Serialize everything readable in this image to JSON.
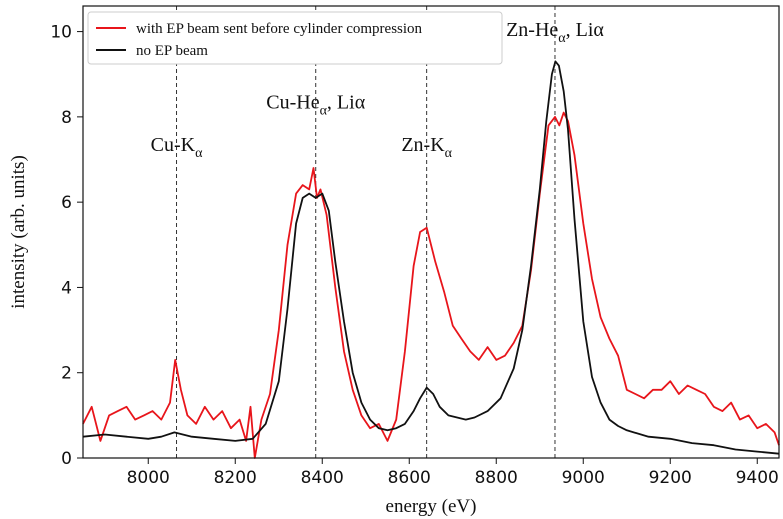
{
  "chart_data": {
    "type": "line",
    "xlabel": "energy (eV)",
    "ylabel": "intensity (arb. units)",
    "xlim": [
      7850,
      9450
    ],
    "ylim": [
      0,
      10.6
    ],
    "xticks": [
      8000,
      8200,
      8400,
      8600,
      8800,
      9000,
      9200,
      9400
    ],
    "yticks": [
      0,
      2,
      4,
      6,
      8,
      10
    ],
    "grid": false,
    "legend_position": "top-left",
    "colors": {
      "with_ep": "#e8151b",
      "no_ep": "#111111"
    },
    "series": [
      {
        "name": "with EP beam sent before cylinder compression",
        "color": "#e8151b",
        "x": [
          7850,
          7870,
          7890,
          7910,
          7930,
          7950,
          7970,
          7990,
          8010,
          8030,
          8050,
          8062,
          8075,
          8090,
          8110,
          8130,
          8150,
          8170,
          8190,
          8210,
          8225,
          8235,
          8245,
          8260,
          8280,
          8300,
          8320,
          8340,
          8355,
          8370,
          8380,
          8388,
          8396,
          8410,
          8430,
          8450,
          8470,
          8490,
          8510,
          8530,
          8550,
          8570,
          8590,
          8610,
          8625,
          8640,
          8660,
          8680,
          8700,
          8720,
          8740,
          8760,
          8780,
          8800,
          8820,
          8840,
          8860,
          8880,
          8900,
          8920,
          8935,
          8945,
          8955,
          8965,
          8980,
          9000,
          9020,
          9040,
          9060,
          9080,
          9100,
          9120,
          9140,
          9160,
          9180,
          9200,
          9220,
          9240,
          9260,
          9280,
          9300,
          9320,
          9340,
          9360,
          9380,
          9400,
          9420,
          9440,
          9450
        ],
        "values": [
          0.8,
          1.2,
          0.4,
          1.0,
          1.1,
          1.2,
          0.9,
          1.0,
          1.1,
          0.9,
          1.3,
          2.3,
          1.6,
          1.0,
          0.8,
          1.2,
          0.9,
          1.1,
          0.7,
          0.9,
          0.4,
          1.2,
          0.0,
          0.9,
          1.5,
          3.0,
          5.0,
          6.2,
          6.4,
          6.3,
          6.8,
          6.1,
          6.3,
          5.7,
          4.0,
          2.5,
          1.6,
          1.0,
          0.7,
          0.8,
          0.4,
          0.9,
          2.5,
          4.5,
          5.3,
          5.4,
          4.6,
          3.9,
          3.1,
          2.8,
          2.5,
          2.3,
          2.6,
          2.3,
          2.4,
          2.7,
          3.1,
          4.4,
          6.2,
          7.8,
          8.0,
          7.8,
          8.1,
          7.9,
          7.1,
          5.5,
          4.2,
          3.3,
          2.8,
          2.4,
          1.6,
          1.5,
          1.4,
          1.6,
          1.6,
          1.8,
          1.5,
          1.7,
          1.6,
          1.5,
          1.2,
          1.1,
          1.3,
          0.9,
          1.0,
          0.7,
          0.8,
          0.6,
          0.3
        ]
      },
      {
        "name": "no EP beam",
        "color": "#111111",
        "x": [
          7850,
          7900,
          7950,
          8000,
          8030,
          8060,
          8100,
          8150,
          8200,
          8240,
          8270,
          8300,
          8320,
          8340,
          8355,
          8370,
          8385,
          8400,
          8415,
          8430,
          8450,
          8470,
          8490,
          8510,
          8530,
          8550,
          8570,
          8590,
          8610,
          8625,
          8640,
          8655,
          8670,
          8690,
          8710,
          8730,
          8750,
          8780,
          8810,
          8840,
          8860,
          8880,
          8900,
          8915,
          8928,
          8936,
          8944,
          8955,
          8965,
          8980,
          9000,
          9020,
          9040,
          9060,
          9080,
          9100,
          9150,
          9200,
          9250,
          9300,
          9350,
          9400,
          9450
        ],
        "values": [
          0.5,
          0.55,
          0.5,
          0.45,
          0.5,
          0.6,
          0.5,
          0.45,
          0.4,
          0.45,
          0.8,
          1.8,
          3.5,
          5.5,
          6.1,
          6.2,
          6.1,
          6.2,
          5.8,
          4.6,
          3.2,
          2.0,
          1.3,
          0.9,
          0.7,
          0.65,
          0.7,
          0.8,
          1.1,
          1.4,
          1.65,
          1.5,
          1.2,
          1.0,
          0.95,
          0.9,
          0.95,
          1.1,
          1.4,
          2.1,
          3.0,
          4.5,
          6.3,
          7.9,
          9.0,
          9.3,
          9.2,
          8.6,
          7.7,
          5.6,
          3.2,
          1.9,
          1.3,
          0.9,
          0.75,
          0.65,
          0.5,
          0.45,
          0.35,
          0.3,
          0.2,
          0.15,
          0.1
        ]
      }
    ],
    "reference_lines": [
      {
        "x": 8065,
        "label_main": "Cu-K",
        "label_sub": "α",
        "label_after": "",
        "label_y": 7.2
      },
      {
        "x": 8385,
        "label_main": "Cu-He",
        "label_sub": "α",
        "label_after": ", Liα",
        "label_y": 8.2
      },
      {
        "x": 8640,
        "label_main": "Zn-K",
        "label_sub": "α",
        "label_after": "",
        "label_y": 7.2
      },
      {
        "x": 8935,
        "label_main": "Zn-He",
        "label_sub": "α",
        "label_after": ", Liα",
        "label_y": 9.9
      }
    ]
  }
}
